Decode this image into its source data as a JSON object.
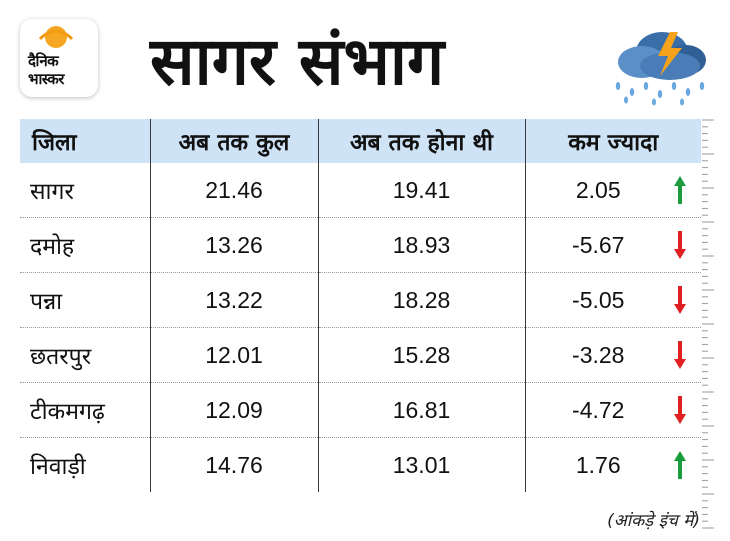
{
  "logo": {
    "line1": "दैनिक",
    "line2": "भास्कर"
  },
  "title": "सागर संभाग",
  "table": {
    "headers": [
      "जिला",
      "अब तक कुल",
      "अब तक होना थी",
      "कम ज्यादा"
    ],
    "rows": [
      {
        "district": "सागर",
        "total": "21.46",
        "expected": "19.41",
        "diff": "2.05",
        "trend": "up"
      },
      {
        "district": "दमोह",
        "total": "13.26",
        "expected": "18.93",
        "diff": "-5.67",
        "trend": "down"
      },
      {
        "district": "पन्ना",
        "total": "13.22",
        "expected": "18.28",
        "diff": "-5.05",
        "trend": "down"
      },
      {
        "district": "छतरपुर",
        "total": "12.01",
        "expected": "15.28",
        "diff": "-3.28",
        "trend": "down"
      },
      {
        "district": "टीकमगढ़",
        "total": "12.09",
        "expected": "16.81",
        "diff": "-4.72",
        "trend": "down"
      },
      {
        "district": "निवाड़ी",
        "total": "14.76",
        "expected": "13.01",
        "diff": "1.76",
        "trend": "up"
      }
    ]
  },
  "footnote": "(आंकड़े इंच में)",
  "colors": {
    "header_bg": "#cfe3f7",
    "up": "#1a9b3c",
    "down": "#e02020"
  },
  "icons": {
    "weather": "storm-cloud-rain-icon",
    "trend_up": "arrow-up-icon",
    "trend_down": "arrow-down-icon"
  },
  "chart_data": {
    "type": "table",
    "title": "सागर संभाग",
    "columns": [
      "जिला",
      "अब तक कुल",
      "अब तक होना थी",
      "कम ज्यादा"
    ],
    "rows": [
      [
        "सागर",
        21.46,
        19.41,
        2.05
      ],
      [
        "दमोह",
        13.26,
        18.93,
        -5.67
      ],
      [
        "पन्ना",
        13.22,
        18.28,
        -5.05
      ],
      [
        "छतरपुर",
        12.01,
        15.28,
        -3.28
      ],
      [
        "टीकमगढ़",
        12.09,
        16.81,
        -4.72
      ],
      [
        "निवाड़ी",
        14.76,
        13.01,
        1.76
      ]
    ],
    "note": "(आंकड़े इंच में)"
  }
}
